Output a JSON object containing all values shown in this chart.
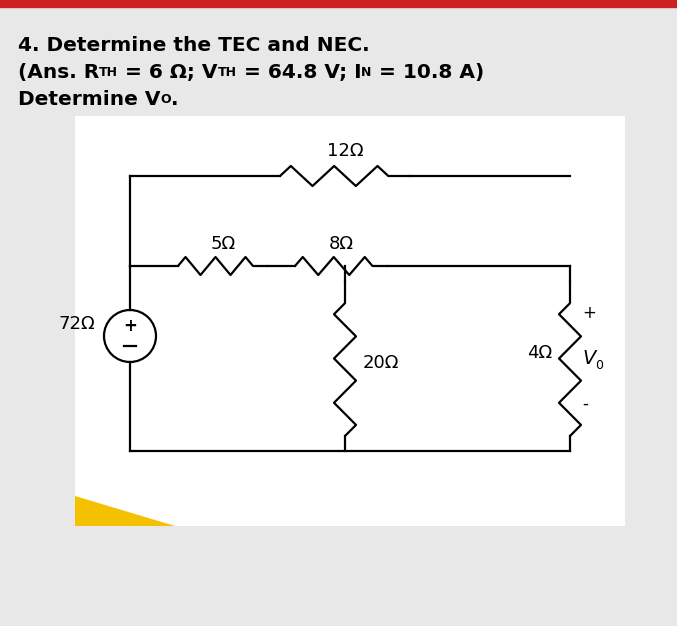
{
  "background_color": "#e8e8e8",
  "header_bg": "#e8e8e8",
  "circuit_bg": "#ffffff",
  "top_bar_color": "#cc2222",
  "text_color": "#000000",
  "resistor_12": "12Ω",
  "resistor_5": "5Ω",
  "resistor_8": "8Ω",
  "resistor_20": "20Ω",
  "resistor_4": "4Ω",
  "source_label": "72Ω",
  "line1": "4. Determine the TEC and NEC.",
  "line2_parts": [
    "(Ans. R",
    "TH",
    " = 6 Ω; V",
    "TH",
    " = 64.8 V; I",
    "N",
    " = 10.8 A)"
  ],
  "line3_parts": [
    "Determine V",
    "O",
    "."
  ],
  "vo_plus": "+",
  "vo_minus": "-",
  "vo_label": "V",
  "vo_sub": "0"
}
